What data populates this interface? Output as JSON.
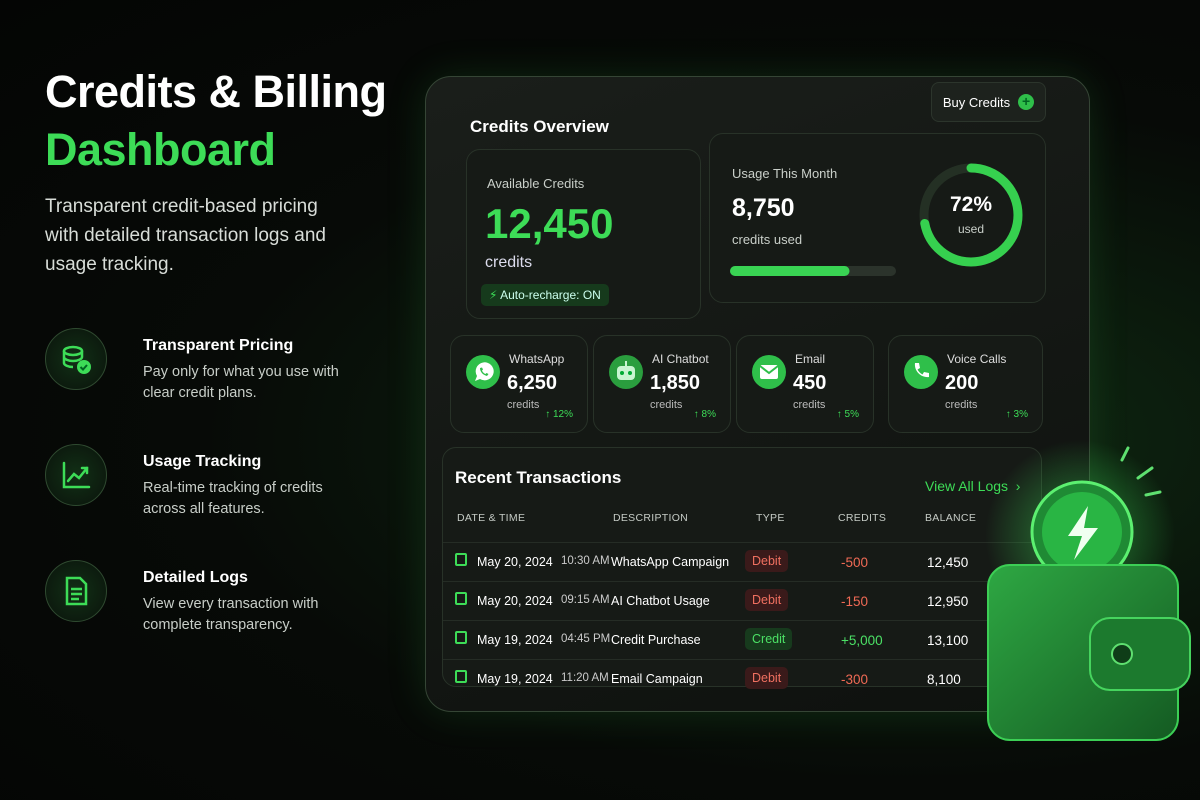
{
  "hero": {
    "title_line1": "Credits & Billing",
    "title_line2": "Dashboard",
    "description": "Transparent credit-based pricing with detailed transaction logs and usage tracking."
  },
  "features": [
    {
      "title": "Transparent Pricing",
      "description": "Pay only for what you use with clear credit plans."
    },
    {
      "title": "Usage Tracking",
      "description": "Real-time tracking of credits across all features."
    },
    {
      "title": "Detailed Logs",
      "description": "View every transaction with complete transparency."
    }
  ],
  "dashboard": {
    "title": "Credits Overview",
    "buy_button": "Buy Credits",
    "available": {
      "label": "Available Credits",
      "value": "12,450",
      "unit": "credits",
      "auto_recharge": "Auto-recharge: ON"
    },
    "usage": {
      "label": "Usage This Month",
      "value": "8,750",
      "unit": "credits used",
      "percent": {
        "value": 72,
        "label": "72%"
      },
      "percent_caption": "used"
    },
    "channels": [
      {
        "name": "WhatsApp",
        "value": "6,250",
        "unit": "credits",
        "change": "↑ 12%"
      },
      {
        "name": "AI Chatbot",
        "value": "1,850",
        "unit": "credits",
        "change": "↑ 8%"
      },
      {
        "name": "Email",
        "value": "450",
        "unit": "credits",
        "change": "↑ 5%"
      },
      {
        "name": "Voice Calls",
        "value": "200",
        "unit": "credits",
        "change": "↑ 3%"
      }
    ],
    "transactions": {
      "title": "Recent Transactions",
      "view_all": "View All Logs",
      "columns": [
        "DATE & TIME",
        "DESCRIPTION",
        "TYPE",
        "CREDITS",
        "BALANCE"
      ],
      "rows": [
        [
          "May 20, 2024",
          "10:30 AM",
          "WhatsApp Campaign",
          "Debit",
          "-500",
          "12,450"
        ],
        [
          "May 20, 2024",
          "09:15 AM",
          "AI Chatbot Usage",
          "Debit",
          "-150",
          "12,950"
        ],
        [
          "May 19, 2024",
          "04:45 PM",
          "Credit Purchase",
          "Credit",
          "+5,000",
          "13,100"
        ],
        [
          "May 19, 2024",
          "11:20 AM",
          "Email Campaign",
          "Debit",
          "-300",
          "8,100"
        ]
      ]
    }
  }
}
